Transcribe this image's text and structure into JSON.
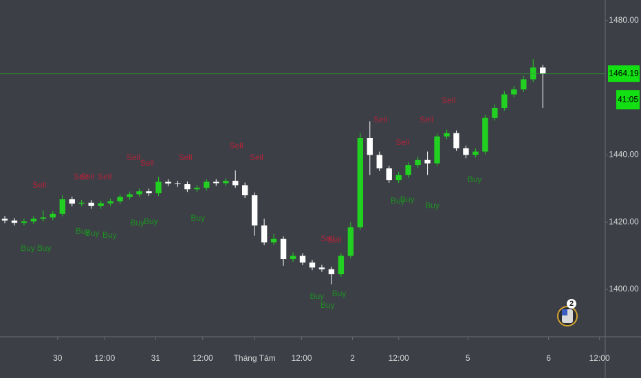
{
  "chart_data": {
    "type": "candlestick",
    "up_color": "#22d022",
    "down_color": "#ffffff",
    "ylim": [
      1385.9,
      1486.1
    ],
    "yticks": [
      {
        "value": 1400,
        "label": "1400.00"
      },
      {
        "value": 1420,
        "label": "1420.00"
      },
      {
        "value": 1440,
        "label": "1440.00"
      },
      {
        "value": 1480,
        "label": "1480.00"
      }
    ],
    "xlim": [
      -0.5,
      62.5
    ],
    "xticks": [
      {
        "value": 5.5,
        "label": "30"
      },
      {
        "value": 10.4,
        "label": "12:00"
      },
      {
        "value": 15.7,
        "label": "31"
      },
      {
        "value": 20.6,
        "label": "12:00"
      },
      {
        "value": 26,
        "label": "Tháng Tám"
      },
      {
        "value": 30.9,
        "label": "12:00"
      },
      {
        "value": 36.2,
        "label": "2"
      },
      {
        "value": 41,
        "label": "12:00"
      },
      {
        "value": 48.2,
        "label": "5"
      },
      {
        "value": 56.6,
        "label": "6"
      },
      {
        "value": 61.9,
        "label": "12:00"
      }
    ],
    "open": [
      1421,
      1420.5,
      1419.8,
      1420.2,
      1421,
      1421.4,
      1422.5,
      1426.8,
      1425.5,
      1425.8,
      1424.8,
      1425.6,
      1426.2,
      1427.5,
      1428.3,
      1429.2,
      1428.6,
      1432,
      1431.5,
      1431.3,
      1429.8,
      1430.2,
      1432,
      1431.6,
      1432.3,
      1431,
      1428,
      1419,
      1414,
      1415,
      1409,
      1410,
      1408,
      1406.5,
      1406,
      1404.5,
      1410,
      1418.5,
      1445,
      1440,
      1436,
      1432.5,
      1434,
      1437,
      1438.5,
      1437.5,
      1445.5,
      1446.5,
      1442,
      1440,
      1441,
      1451,
      1454,
      1458,
      1459.5,
      1462.5,
      1466
    ],
    "high": [
      1421.8,
      1421.3,
      1421,
      1421.8,
      1423.5,
      1423.3,
      1428,
      1427.6,
      1426.6,
      1426.6,
      1426.4,
      1427,
      1428.3,
      1429.1,
      1430,
      1430,
      1433.5,
      1432.8,
      1432.3,
      1432.1,
      1431,
      1432.8,
      1432.8,
      1433.1,
      1435.4,
      1431.8,
      1428.8,
      1421,
      1416.5,
      1415.8,
      1411,
      1410.8,
      1408.8,
      1407.3,
      1406.8,
      1410.8,
      1420,
      1446.5,
      1450,
      1441,
      1436.8,
      1435,
      1437.8,
      1439.5,
      1441,
      1446.3,
      1447.5,
      1447.3,
      1442.8,
      1442,
      1452,
      1455,
      1459,
      1460.5,
      1463.5,
      1468.5,
      1466.8
    ],
    "low": [
      1419.7,
      1419,
      1419,
      1419.4,
      1420.2,
      1420.6,
      1421.7,
      1424.7,
      1424.7,
      1424,
      1424,
      1424.8,
      1425.4,
      1426.7,
      1427.5,
      1427.8,
      1427.8,
      1430.7,
      1430.5,
      1429,
      1429,
      1429.4,
      1430.8,
      1430.8,
      1430.2,
      1427.2,
      1416,
      1413.2,
      1413.2,
      1407,
      1408.2,
      1407.2,
      1405.7,
      1405.2,
      1401.5,
      1403.7,
      1409.2,
      1417.7,
      1434,
      1435.2,
      1431.7,
      1431.7,
      1433.2,
      1436.2,
      1434,
      1436.7,
      1444.7,
      1441.2,
      1439,
      1439.2,
      1440.2,
      1450.2,
      1453.2,
      1457.2,
      1458.7,
      1461.7,
      1454
    ],
    "close": [
      1420.5,
      1419.8,
      1420.2,
      1421,
      1421.4,
      1422.5,
      1426.8,
      1425.5,
      1425.8,
      1424.8,
      1425.6,
      1426.2,
      1427.5,
      1428.3,
      1429.2,
      1428.6,
      1432,
      1431.5,
      1431.3,
      1429.8,
      1430.2,
      1432,
      1431.6,
      1432.3,
      1431,
      1428,
      1419,
      1414,
      1415,
      1409,
      1410,
      1408,
      1406.5,
      1406,
      1404.5,
      1410,
      1418.5,
      1445,
      1440,
      1436,
      1432.5,
      1434,
      1437,
      1438.5,
      1437.5,
      1445.5,
      1446.5,
      1442,
      1440,
      1441,
      1451,
      1454,
      1458,
      1459.5,
      1462.5,
      1466,
      1464.19
    ],
    "last_price": {
      "value": 1464.19,
      "label": "1464.19"
    },
    "countdown": "41:05",
    "badge": "2",
    "signals": [
      {
        "label": "Sell",
        "color": "#b5233a",
        "x": 3.6,
        "y": 1430.9
      },
      {
        "label": "Sell",
        "color": "#b5233a",
        "x": 7.9,
        "y": 1433.4
      },
      {
        "label": "Sell",
        "color": "#b5233a",
        "x": 8.6,
        "y": 1433.4
      },
      {
        "label": "Sell",
        "color": "#b5233a",
        "x": 10.4,
        "y": 1433.4
      },
      {
        "label": "Sell",
        "color": "#b5233a",
        "x": 13.4,
        "y": 1439.1
      },
      {
        "label": "Sell",
        "color": "#b5233a",
        "x": 14.8,
        "y": 1437.5
      },
      {
        "label": "Sell",
        "color": "#b5233a",
        "x": 18.8,
        "y": 1439.1
      },
      {
        "label": "Sell",
        "color": "#b5233a",
        "x": 24.1,
        "y": 1442.6
      },
      {
        "label": "Sell",
        "color": "#b5233a",
        "x": 26.2,
        "y": 1439.1
      },
      {
        "label": "Sell",
        "color": "#b5233a",
        "x": 33.6,
        "y": 1415
      },
      {
        "label": "Sell",
        "color": "#b5233a",
        "x": 34.3,
        "y": 1414.6
      },
      {
        "label": "Sell",
        "color": "#b5233a",
        "x": 39.1,
        "y": 1450.3
      },
      {
        "label": "Sell",
        "color": "#b5233a",
        "x": 41.4,
        "y": 1443.6
      },
      {
        "label": "Sell",
        "color": "#b5233a",
        "x": 43.9,
        "y": 1450.3
      },
      {
        "label": "Sell",
        "color": "#b5233a",
        "x": 46.2,
        "y": 1456.1
      },
      {
        "label": "Buy",
        "color": "#1f8f24",
        "x": 2.4,
        "y": 1412.1
      },
      {
        "label": "Buy",
        "color": "#1f8f24",
        "x": 4.1,
        "y": 1412.1
      },
      {
        "label": "Buy",
        "color": "#1f8f24",
        "x": 8.1,
        "y": 1417.2
      },
      {
        "label": "Buy",
        "color": "#1f8f24",
        "x": 9.1,
        "y": 1416.6
      },
      {
        "label": "Buy",
        "color": "#1f8f24",
        "x": 10.9,
        "y": 1416
      },
      {
        "label": "Buy",
        "color": "#1f8f24",
        "x": 13.8,
        "y": 1419.7
      },
      {
        "label": "Buy",
        "color": "#1f8f24",
        "x": 15.2,
        "y": 1420.1
      },
      {
        "label": "Buy",
        "color": "#1f8f24",
        "x": 20.1,
        "y": 1421.1
      },
      {
        "label": "Buy",
        "color": "#1f8f24",
        "x": 32.5,
        "y": 1397.8
      },
      {
        "label": "Buy",
        "color": "#1f8f24",
        "x": 33.6,
        "y": 1395.1
      },
      {
        "label": "Buy",
        "color": "#1f8f24",
        "x": 34.8,
        "y": 1398.6
      },
      {
        "label": "Buy",
        "color": "#1f8f24",
        "x": 40.9,
        "y": 1426.2
      },
      {
        "label": "Buy",
        "color": "#1f8f24",
        "x": 41.9,
        "y": 1426.6
      },
      {
        "label": "Buy",
        "color": "#1f8f24",
        "x": 44.5,
        "y": 1424.8
      },
      {
        "label": "Buy",
        "color": "#1f8f24",
        "x": 48.9,
        "y": 1432.6
      }
    ]
  }
}
